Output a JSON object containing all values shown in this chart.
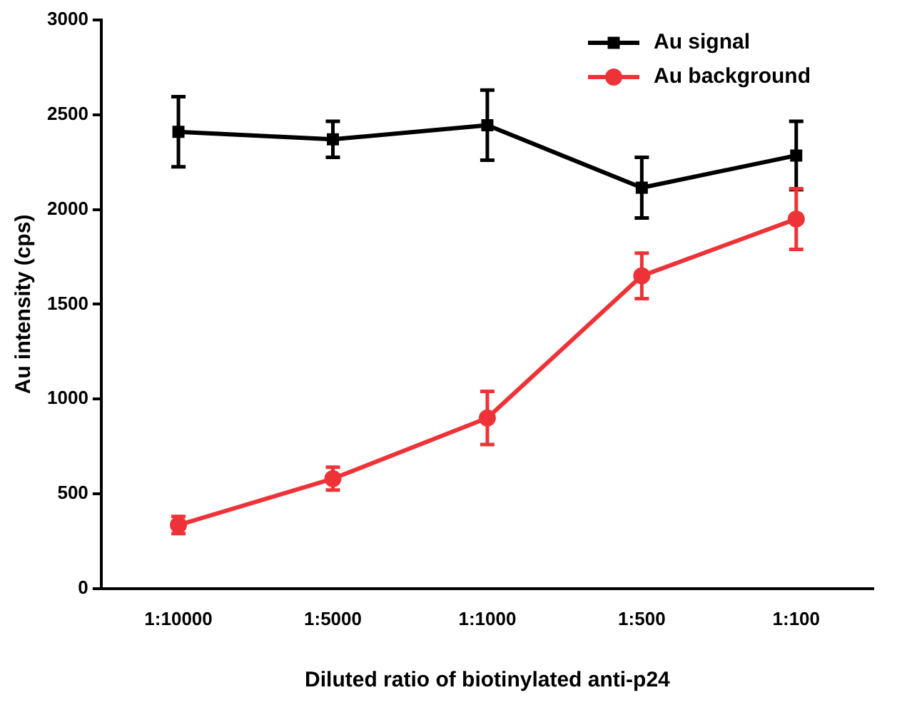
{
  "chart_data": {
    "type": "line",
    "xlabel": "Diluted ratio of biotinylated anti-p24",
    "ylabel": "Au intensity (cps)",
    "categories": [
      "1:10000",
      "1:5000",
      "1:1000",
      "1:500",
      "1:100"
    ],
    "series": [
      {
        "name": "Au signal",
        "color": "#000000",
        "marker": "square",
        "values": [
          2410,
          2370,
          2445,
          2115,
          2285
        ],
        "errors": [
          185,
          95,
          185,
          160,
          180
        ]
      },
      {
        "name": "Au background",
        "color": "#ee3338",
        "marker": "circle",
        "values": [
          335,
          580,
          900,
          1650,
          1950
        ],
        "errors": [
          45,
          60,
          140,
          120,
          160
        ]
      }
    ],
    "ylim": [
      0,
      3000
    ],
    "yticks": [
      0,
      500,
      1000,
      1500,
      2000,
      2500,
      3000
    ],
    "grid": false,
    "legend": "top right",
    "line_style": "solid"
  }
}
